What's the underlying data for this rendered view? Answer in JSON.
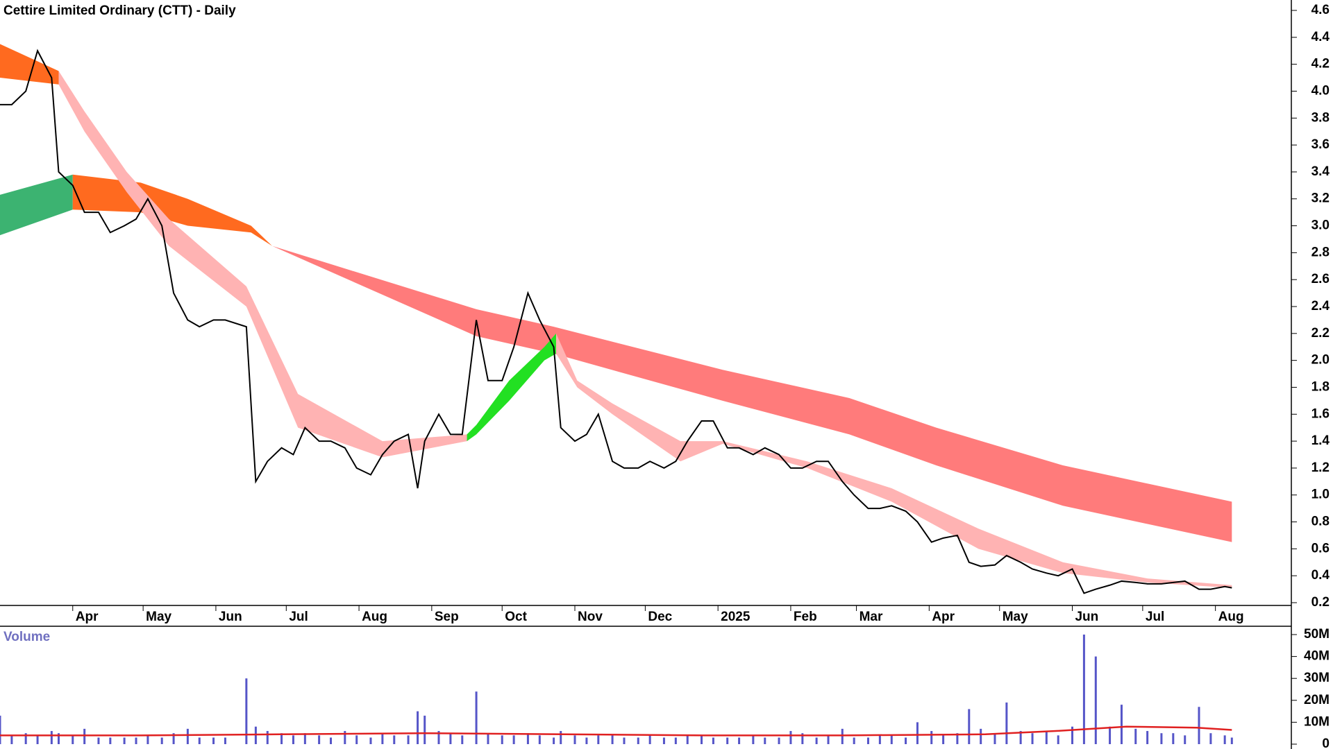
{
  "chart_data": [
    {
      "type": "price",
      "title": "Cettire Limited Ordinary (CTT) - Daily",
      "xlim": [
        0,
        540
      ],
      "xticks": [
        {
          "value": 31,
          "label": "Apr"
        },
        {
          "value": 61,
          "label": "May"
        },
        {
          "value": 92,
          "label": "Jun"
        },
        {
          "value": 122,
          "label": "Jul"
        },
        {
          "value": 153,
          "label": "Aug"
        },
        {
          "value": 184,
          "label": "Sep"
        },
        {
          "value": 214,
          "label": "Oct"
        },
        {
          "value": 245,
          "label": "Nov"
        },
        {
          "value": 275,
          "label": "Dec"
        },
        {
          "value": 306,
          "label": "2025"
        },
        {
          "value": 337,
          "label": "Feb"
        },
        {
          "value": 365,
          "label": "Mar"
        },
        {
          "value": 396,
          "label": "Apr"
        },
        {
          "value": 426,
          "label": "May"
        },
        {
          "value": 457,
          "label": "Jun"
        },
        {
          "value": 487,
          "label": "Jul"
        },
        {
          "value": 518,
          "label": "Aug"
        }
      ],
      "ylim": [
        0.2,
        4.6
      ],
      "yticks": [
        0.2,
        0.4,
        0.6,
        0.8,
        {
          "value": 1,
          "label": "1.0"
        },
        1.2,
        1.4,
        1.6,
        1.8,
        {
          "value": 2,
          "label": "2.0"
        },
        2.2,
        2.4,
        2.6,
        2.8,
        {
          "value": 3,
          "label": "3.0"
        },
        3.2,
        3.4,
        3.6,
        3.8,
        {
          "value": 4,
          "label": "4.0"
        },
        4.2,
        4.4,
        4.6
      ],
      "x": [
        0,
        5,
        11,
        16,
        22,
        25,
        31,
        36,
        42,
        47,
        53,
        58,
        63,
        69,
        74,
        80,
        85,
        91,
        96,
        105,
        109,
        114,
        120,
        125,
        130,
        136,
        141,
        147,
        152,
        158,
        163,
        168,
        174,
        178,
        181,
        187,
        192,
        197,
        203,
        208,
        214,
        219,
        225,
        230,
        236,
        239,
        245,
        250,
        255,
        261,
        266,
        272,
        277,
        283,
        288,
        293,
        299,
        304,
        310,
        315,
        321,
        326,
        332,
        337,
        342,
        348,
        353,
        359,
        364,
        370,
        375,
        380,
        386,
        391,
        397,
        402,
        408,
        413,
        418,
        424,
        429,
        435,
        440,
        446,
        451,
        457,
        462,
        467,
        473,
        478,
        484,
        489,
        495,
        500,
        505,
        511,
        516,
        522,
        525
      ],
      "series": [
        {
          "color": "#000000",
          "values": [
            3.9,
            3.9,
            4.0,
            4.3,
            4.1,
            3.4,
            3.3,
            3.1,
            3.1,
            2.95,
            3.0,
            3.05,
            3.2,
            3.0,
            2.5,
            2.3,
            2.25,
            2.3,
            2.3,
            2.25,
            1.1,
            1.25,
            1.35,
            1.3,
            1.5,
            1.4,
            1.4,
            1.35,
            1.2,
            1.15,
            1.3,
            1.4,
            1.45,
            1.05,
            1.4,
            1.6,
            1.45,
            1.45,
            2.3,
            1.85,
            1.85,
            2.1,
            2.5,
            2.3,
            2.1,
            1.5,
            1.4,
            1.45,
            1.6,
            1.25,
            1.2,
            1.2,
            1.25,
            1.2,
            1.25,
            1.4,
            1.55,
            1.55,
            1.35,
            1.35,
            1.3,
            1.35,
            1.3,
            1.2,
            1.2,
            1.25,
            1.25,
            1.1,
            1.0,
            0.9,
            0.9,
            0.92,
            0.88,
            0.8,
            0.65,
            0.68,
            0.7,
            0.5,
            0.47,
            0.48,
            0.55,
            0.5,
            0.45,
            0.42,
            0.4,
            0.45,
            0.27,
            0.3,
            0.33,
            0.36,
            0.35,
            0.34,
            0.34,
            0.35,
            0.36,
            0.3,
            0.3,
            0.32,
            0.31
          ]
        }
      ],
      "bands": [
        {
          "color": "#3cb371",
          "x": [
            0,
            31
          ],
          "upper": [
            3.23,
            3.38
          ],
          "lower": [
            2.93,
            3.12
          ]
        },
        {
          "color": "#ff6a1f",
          "x": [
            31,
            60,
            80,
            107,
            116
          ],
          "upper": [
            3.38,
            3.32,
            3.2,
            3.0,
            2.85
          ],
          "lower": [
            3.12,
            3.1,
            3.0,
            2.95,
            2.85
          ]
        },
        {
          "color": "#ff7b7b",
          "x": [
            116,
            203,
            236,
            308,
            362,
            399,
            453,
            525
          ],
          "upper": [
            2.85,
            2.38,
            2.25,
            1.93,
            1.72,
            1.5,
            1.22,
            0.95
          ],
          "lower": [
            2.85,
            2.18,
            2.05,
            1.7,
            1.45,
            1.22,
            0.92,
            0.65
          ]
        },
        {
          "color": "#ff6a1f",
          "x": [
            0,
            25
          ],
          "upper": [
            4.35,
            4.15
          ],
          "lower": [
            4.1,
            4.05
          ]
        },
        {
          "color": "#ffb3b3",
          "x": [
            25,
            36,
            54,
            72,
            105,
            127,
            163,
            199
          ],
          "upper": [
            4.15,
            3.85,
            3.4,
            3.05,
            2.55,
            1.75,
            1.4,
            1.45
          ],
          "lower": [
            4.05,
            3.7,
            3.25,
            2.85,
            2.4,
            1.5,
            1.28,
            1.4
          ]
        },
        {
          "color": "#22e022",
          "x": [
            199,
            203,
            217,
            232,
            237
          ],
          "upper": [
            1.45,
            1.52,
            1.85,
            2.1,
            2.2
          ],
          "lower": [
            1.4,
            1.45,
            1.7,
            2.0,
            2.05
          ]
        },
        {
          "color": "#ffb3b3",
          "x": [
            237,
            246,
            261,
            290,
            308,
            344,
            380,
            417,
            453,
            489,
            525
          ],
          "upper": [
            2.2,
            1.85,
            1.68,
            1.4,
            1.4,
            1.25,
            1.05,
            0.75,
            0.5,
            0.38,
            0.33
          ],
          "lower": [
            2.05,
            1.8,
            1.6,
            1.25,
            1.38,
            1.2,
            0.95,
            0.6,
            0.42,
            0.35,
            0.31
          ]
        }
      ]
    },
    {
      "type": "volume",
      "title": "Volume",
      "xlim": [
        0,
        540
      ],
      "ylim": [
        0,
        50000000
      ],
      "yticks": [
        0,
        {
          "value": 10000000,
          "label": "10M"
        },
        {
          "value": 20000000,
          "label": "20M"
        },
        {
          "value": 30000000,
          "label": "30M"
        },
        {
          "value": 40000000,
          "label": "40M"
        },
        {
          "value": 50000000,
          "label": "50M"
        }
      ],
      "x": [
        0,
        5,
        11,
        16,
        22,
        25,
        31,
        36,
        42,
        47,
        53,
        58,
        63,
        69,
        74,
        80,
        85,
        91,
        96,
        105,
        109,
        114,
        120,
        125,
        130,
        136,
        141,
        147,
        152,
        158,
        163,
        168,
        174,
        178,
        181,
        187,
        192,
        197,
        203,
        208,
        214,
        219,
        225,
        230,
        236,
        239,
        245,
        250,
        255,
        261,
        266,
        272,
        277,
        283,
        288,
        293,
        299,
        304,
        310,
        315,
        321,
        326,
        332,
        337,
        342,
        348,
        353,
        359,
        364,
        370,
        375,
        380,
        386,
        391,
        397,
        402,
        408,
        413,
        418,
        424,
        429,
        435,
        440,
        446,
        451,
        457,
        462,
        467,
        473,
        478,
        484,
        489,
        495,
        500,
        505,
        511,
        516,
        522,
        525
      ],
      "color": "#5555c8",
      "values": [
        13000000.0,
        4000000.0,
        5000000.0,
        4000000.0,
        6000000.0,
        5000000.0,
        4000000.0,
        7000000.0,
        3000000.0,
        3000000.0,
        3000000.0,
        3000000.0,
        4000000.0,
        3000000.0,
        5000000.0,
        7000000.0,
        3000000.0,
        3000000.0,
        3000000.0,
        30000000.0,
        8000000.0,
        6000000.0,
        5000000.0,
        4000000.0,
        5000000.0,
        4000000.0,
        3000000.0,
        6000000.0,
        4000000.0,
        3000000.0,
        5000000.0,
        4000000.0,
        4000000.0,
        15000000.0,
        13000000.0,
        6000000.0,
        5000000.0,
        4000000.0,
        24000000.0,
        5000000.0,
        4000000.0,
        4000000.0,
        5000000.0,
        4000000.0,
        3000000.0,
        6000000.0,
        4000000.0,
        3000000.0,
        4000000.0,
        4000000.0,
        3000000.0,
        3000000.0,
        4000000.0,
        3000000.0,
        3000000.0,
        4000000.0,
        4000000.0,
        3000000.0,
        3000000.0,
        3000000.0,
        4000000.0,
        3000000.0,
        3000000.0,
        6000000.0,
        5000000.0,
        3000000.0,
        4000000.0,
        7000000.0,
        3000000.0,
        3000000.0,
        4000000.0,
        4000000.0,
        3000000.0,
        10000000.0,
        6000000.0,
        4000000.0,
        5000000.0,
        16000000.0,
        7000000.0,
        5000000.0,
        19000000.0,
        6000000.0,
        5000000.0,
        6000000.0,
        4000000.0,
        8000000.0,
        50000000.0,
        40000000.0,
        8000000.0,
        18000000.0,
        7000000.0,
        6000000.0,
        5000000.0,
        5000000.0,
        4000000.0,
        17000000.0,
        5000000.0,
        4000000.0,
        3000000.0
      ],
      "average": {
        "color": "#e02020",
        "x": [
          0,
          60,
          120,
          180,
          240,
          300,
          360,
          420,
          450,
          480,
          510,
          525
        ],
        "values": [
          4000000.0,
          4000000.0,
          4500000.0,
          5000000.0,
          4500000.0,
          4000000.0,
          4000000.0,
          4500000.0,
          6000000.0,
          8000000.0,
          7500000.0,
          6500000.0
        ]
      }
    }
  ]
}
